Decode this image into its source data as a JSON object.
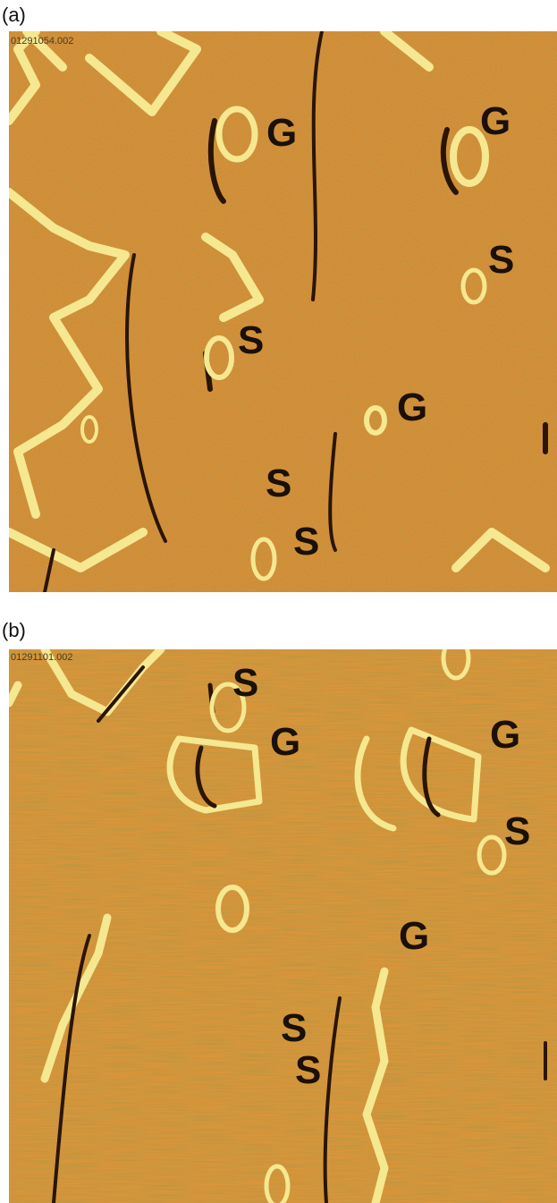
{
  "panels": [
    {
      "label": "(a)",
      "filename": "01291054.002",
      "marks": [
        "G",
        "G",
        "S",
        "S",
        "G",
        "S",
        "S"
      ]
    },
    {
      "label": "(b)",
      "filename": "01291101.002",
      "marks": [
        "G",
        "G",
        "S",
        "S",
        "G",
        "S",
        "S"
      ]
    }
  ]
}
